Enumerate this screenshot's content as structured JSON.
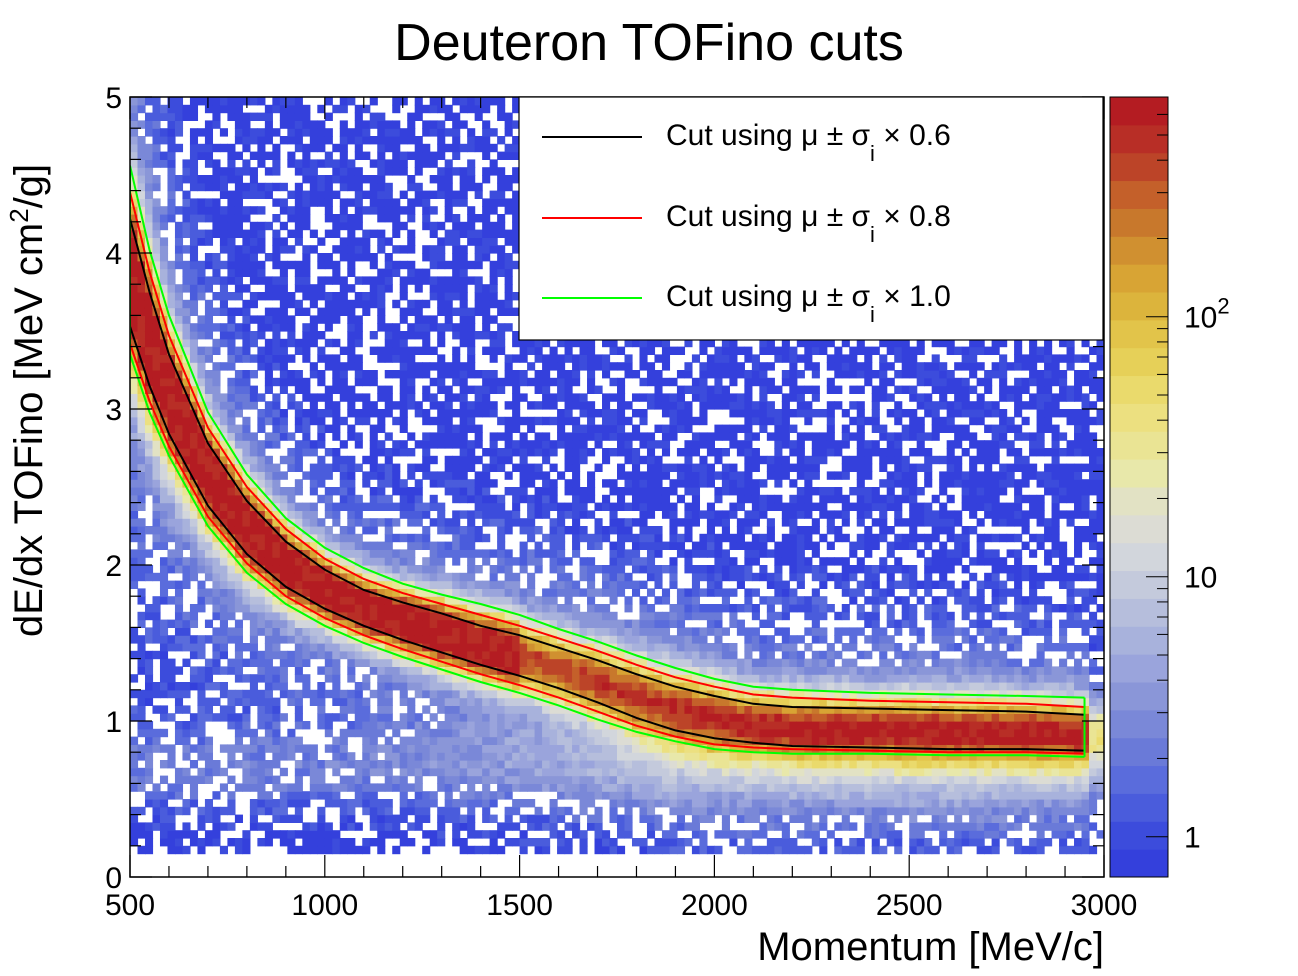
{
  "chart_data": {
    "type": "heatmap",
    "title": "Deuteron TOFino cuts",
    "xlabel": "Momentum [MeV/c]",
    "ylabel_main": "dE/dx TOFino [MeV cm",
    "ylabel_sup": "2",
    "ylabel_end": "/g]",
    "xlim": [
      500,
      3000
    ],
    "ylim": [
      0,
      5
    ],
    "x_ticks": [
      500,
      1000,
      1500,
      2000,
      2500,
      3000
    ],
    "x_tick_labels": [
      "500",
      "1000",
      "1500",
      "2000",
      "2500",
      "3000"
    ],
    "y_ticks": [
      0,
      1,
      2,
      3,
      4,
      5
    ],
    "y_tick_labels": [
      "0",
      "1",
      "2",
      "3",
      "4",
      "5"
    ],
    "colorbar": {
      "scale": "log",
      "range": [
        0.7,
        700
      ],
      "ticks": [
        1,
        10,
        100
      ],
      "labels": [
        {
          "main": "1",
          "sup": ""
        },
        {
          "main": "10",
          "sup": ""
        },
        {
          "main": "10",
          "sup": "2"
        }
      ],
      "colors": [
        "#3440dc",
        "#3c4cdc",
        "#4a5cdc",
        "#5a6cdc",
        "#6a7ad8",
        "#7a88d8",
        "#8a96d8",
        "#9aa4dc",
        "#a8b2dc",
        "#b6bedc",
        "#c4cadc",
        "#d2d6dc",
        "#dcdcd4",
        "#e2e2c4",
        "#e8e8aa",
        "#eae494",
        "#ece080",
        "#eada6c",
        "#e6d058",
        "#e2c44a",
        "#dcb43c",
        "#d8a434",
        "#d09030",
        "#c8782c",
        "#c4602a",
        "#bc4428",
        "#b82e26",
        "#b41c22"
      ]
    },
    "series": [
      {
        "name": "Cut using μ ± σi × 0.6",
        "color": "#000000",
        "x": [
          500,
          550,
          600,
          700,
          800,
          900,
          1000,
          1100,
          1200,
          1300,
          1400,
          1500,
          1600,
          1700,
          1800,
          1900,
          2000,
          2100,
          2200,
          2400,
          2600,
          2800,
          2950
        ],
        "upper": [
          4.22,
          3.75,
          3.35,
          2.78,
          2.41,
          2.15,
          1.97,
          1.84,
          1.76,
          1.69,
          1.61,
          1.55,
          1.47,
          1.39,
          1.3,
          1.22,
          1.16,
          1.11,
          1.09,
          1.08,
          1.07,
          1.06,
          1.04
        ],
        "lower": [
          3.53,
          3.15,
          2.84,
          2.38,
          2.07,
          1.86,
          1.72,
          1.61,
          1.52,
          1.44,
          1.36,
          1.29,
          1.21,
          1.12,
          1.02,
          0.94,
          0.89,
          0.86,
          0.84,
          0.83,
          0.82,
          0.82,
          0.81
        ]
      },
      {
        "name": "Cut using μ ± σi × 0.8",
        "color": "#ff0000",
        "x": [
          500,
          550,
          600,
          700,
          800,
          900,
          1000,
          1100,
          1200,
          1300,
          1400,
          1500,
          1600,
          1700,
          1800,
          1900,
          2000,
          2100,
          2200,
          2400,
          2600,
          2800,
          2950
        ],
        "upper": [
          4.39,
          3.88,
          3.47,
          2.88,
          2.5,
          2.23,
          2.04,
          1.91,
          1.82,
          1.75,
          1.68,
          1.61,
          1.53,
          1.45,
          1.36,
          1.28,
          1.22,
          1.17,
          1.15,
          1.13,
          1.12,
          1.11,
          1.09
        ],
        "lower": [
          3.42,
          3.05,
          2.76,
          2.31,
          2.01,
          1.8,
          1.66,
          1.55,
          1.46,
          1.38,
          1.3,
          1.23,
          1.15,
          1.06,
          0.97,
          0.9,
          0.85,
          0.83,
          0.82,
          0.81,
          0.8,
          0.8,
          0.79
        ]
      },
      {
        "name": "Cut using μ ± σi × 1.0",
        "color": "#00ff00",
        "x": [
          500,
          550,
          600,
          700,
          800,
          900,
          1000,
          1100,
          1200,
          1300,
          1400,
          1500,
          1600,
          1700,
          1800,
          1900,
          2000,
          2100,
          2200,
          2400,
          2600,
          2800,
          2950
        ],
        "upper": [
          4.56,
          4.02,
          3.6,
          2.98,
          2.58,
          2.3,
          2.11,
          1.98,
          1.88,
          1.81,
          1.75,
          1.68,
          1.59,
          1.51,
          1.42,
          1.34,
          1.27,
          1.22,
          1.2,
          1.18,
          1.17,
          1.16,
          1.15
        ],
        "lower": [
          3.35,
          2.98,
          2.7,
          2.25,
          1.95,
          1.75,
          1.61,
          1.5,
          1.41,
          1.33,
          1.25,
          1.18,
          1.1,
          1.01,
          0.93,
          0.87,
          0.82,
          0.8,
          0.79,
          0.79,
          0.78,
          0.78,
          0.77
        ]
      }
    ],
    "legend": {
      "placement": "top-right",
      "entries": [
        {
          "prefix": "Cut using ",
          "mu": "μ",
          "pm": " ± ",
          "sigma": "σ",
          "sub": "i",
          "times": " × ",
          "factor": "0.6",
          "color": "#000000"
        },
        {
          "prefix": "Cut using ",
          "mu": "μ",
          "pm": " ± ",
          "sigma": "σ",
          "sub": "i",
          "times": " × ",
          "factor": "0.8",
          "color": "#ff0000"
        },
        {
          "prefix": "Cut using ",
          "mu": "μ",
          "pm": " ± ",
          "sigma": "σ",
          "sub": "i",
          "times": " × ",
          "factor": "1.0",
          "color": "#00ff00"
        }
      ]
    },
    "grid": false
  }
}
